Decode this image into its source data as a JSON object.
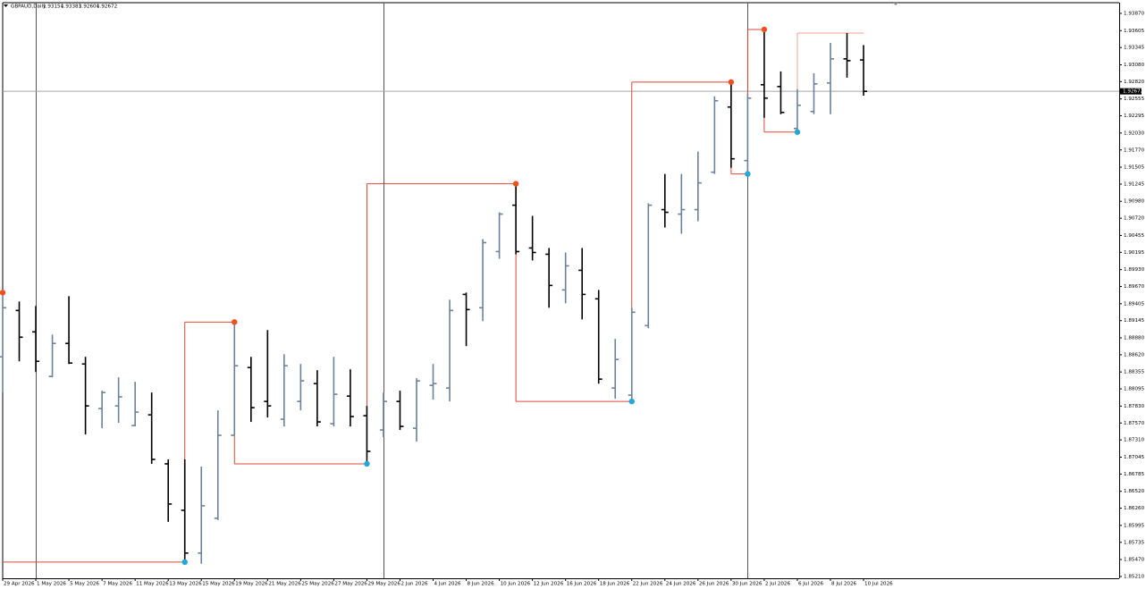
{
  "chart_data": {
    "type": "ohlc",
    "symbol": "GBPAUD,Daily",
    "categories": [
      "29 Apr 2026",
      null,
      "1 May 2026",
      null,
      "5 May 2026",
      null,
      "7 May 2026",
      null,
      "11 May 2026",
      null,
      "13 May 2026",
      null,
      "15 May 2026",
      null,
      "19 May 2026",
      null,
      "21 May 2026",
      null,
      "25 May 2026",
      null,
      "27 May 2026",
      null,
      "29 May 2026",
      null,
      "2 Jun 2026",
      null,
      "4 Jun 2026",
      null,
      "8 Jun 2026",
      null,
      "10 Jun 2026",
      null,
      "12 Jun 2026",
      null,
      "16 Jun 2026",
      null,
      "18 Jun 2026",
      null,
      "22 Jun 2026",
      null,
      "24 Jun 2026",
      null,
      "26 Jun 2026",
      null,
      "30 Jun 2026",
      null,
      "2 Jul 2026",
      null,
      "6 Jul 2026",
      null,
      "8 Jul 2026",
      null,
      "10 Jul 2026"
    ],
    "open": [
      1.88588,
      1.89301,
      1.88972,
      1.88286,
      1.88794,
      1.88478,
      1.87792,
      1.87833,
      1.87532,
      1.87696,
      1.86942,
      1.86228,
      1.8557,
      1.86105,
      1.87381,
      1.88423,
      1.87902,
      1.87628,
      1.87902,
      1.88176,
      1.87559,
      1.87984,
      1.87682,
      1.87463,
      1.87902,
      1.8749,
      1.88149,
      1.88108,
      1.89548,
      1.89343,
      1.90207,
      1.9092,
      1.90262,
      1.90166,
      1.89617,
      1.89919,
      1.8948,
      1.88108,
      1.87998,
      1.89068,
      1.90852,
      1.90783,
      1.90852,
      1.91428,
      1.9243,
      1.91606,
      1.92773,
      1.92745,
      1.921,
      1.92361,
      1.928,
      1.93171,
      1.93154
    ],
    "high": [
      1.89576,
      1.89439,
      1.8937,
      1.88931,
      1.89521,
      1.88588,
      1.88067,
      1.88272,
      1.88204,
      1.88039,
      1.8701,
      1.8701,
      1.869,
      1.87765,
      1.89123,
      1.88588,
      1.89,
      1.88629,
      1.88478,
      1.88382,
      1.88588,
      1.88396,
      1.87833,
      1.88039,
      1.88067,
      1.88259,
      1.88478,
      1.89466,
      1.89576,
      1.90399,
      1.90811,
      1.9125,
      1.90756,
      1.90262,
      1.90193,
      1.90262,
      1.89617,
      1.88862,
      1.89343,
      1.90948,
      1.91401,
      1.91401,
      1.91744,
      1.92594,
      1.92814,
      1.92635,
      1.93623,
      1.92978,
      1.92704,
      1.92951,
      1.93417,
      1.93568,
      1.93383
    ],
    "low": [
      1.88039,
      1.88519,
      1.88355,
      1.88272,
      1.88478,
      1.87394,
      1.8749,
      1.87573,
      1.87518,
      1.86942,
      1.8605,
      1.85432,
      1.85405,
      1.86077,
      1.87381,
      1.87587,
      1.87655,
      1.87518,
      1.87765,
      1.87518,
      1.87518,
      1.87518,
      1.86942,
      1.87353,
      1.87463,
      1.87285,
      1.87929,
      1.87902,
      1.88753,
      1.89137,
      1.90097,
      1.90166,
      1.9007,
      1.89343,
      1.89411,
      1.89164,
      1.88176,
      1.87943,
      1.87902,
      1.89027,
      1.90577,
      1.90481,
      1.90673,
      1.91401,
      1.91497,
      1.91401,
      1.92265,
      1.9232,
      1.92045,
      1.9232,
      1.9232,
      1.92882,
      1.92604
    ],
    "close": [
      1.89343,
      1.8889,
      1.88519,
      1.88794,
      1.88492,
      1.87833,
      1.88039,
      1.87971,
      1.87737,
      1.8701,
      1.86324,
      1.8557,
      1.86297,
      1.87381,
      1.88451,
      1.87806,
      1.87833,
      1.88451,
      1.88218,
      1.87587,
      1.88012,
      1.87669,
      1.87134,
      1.87902,
      1.87518,
      1.88218,
      1.88176,
      1.89301,
      1.89315,
      1.90344,
      1.90783,
      1.90207,
      1.90193,
      1.89686,
      1.89987,
      1.89548,
      1.88245,
      1.88547,
      1.89274,
      1.9092,
      1.90811,
      1.90852,
      1.91263,
      1.92526,
      1.91634,
      1.92567,
      1.92567,
      1.92347,
      1.92457,
      1.92786,
      1.93171,
      1.93143,
      1.92672
    ],
    "up_color": "#6b829a",
    "down_color": "#000000",
    "pivots": {
      "index": [
        0,
        11,
        14,
        22,
        31,
        38,
        44,
        45,
        46,
        48
      ],
      "values": [
        1.89576,
        1.85432,
        1.89123,
        1.86942,
        1.9125,
        1.87902,
        1.92814,
        1.91401,
        1.93623,
        1.92045
      ],
      "line_color": "#d9493a",
      "high_color": "#f0501e",
      "low_color": "#20a8d8"
    },
    "open_level": 1.93568,
    "open_level_color": "#f2a08e",
    "price_line_color": "#a8a8a8",
    "ylim": [
      1.85182,
      1.94035
    ],
    "yticks": [
      {
        "value": 1.9387,
        "label": "1.93870"
      },
      1.93605,
      1.93345,
      {
        "value": 1.9308,
        "label": "1.93080"
      },
      {
        "value": 1.9282,
        "label": "1.92820"
      },
      1.92555,
      1.92295,
      {
        "value": 1.9203,
        "label": "1.92030"
      },
      {
        "value": 1.9177,
        "label": "1.91770"
      },
      1.91505,
      1.91245,
      {
        "value": 1.9098,
        "label": "1.90980"
      },
      {
        "value": 1.9072,
        "label": "1.90720"
      },
      1.90455,
      1.90195,
      {
        "value": 1.8993,
        "label": "1.89930"
      },
      {
        "value": 1.8967,
        "label": "1.89670"
      },
      1.89405,
      1.89145,
      {
        "value": 1.8888,
        "label": "1.88880"
      },
      {
        "value": 1.8862,
        "label": "1.88620"
      },
      1.88355,
      1.88095,
      {
        "value": 1.8783,
        "label": "1.87830"
      },
      {
        "value": 1.8757,
        "label": "1.87570"
      },
      {
        "value": 1.8731,
        "label": "1.87310"
      },
      1.87045,
      1.86785,
      {
        "value": 1.8652,
        "label": "1.86520"
      },
      {
        "value": 1.8626,
        "label": "1.86260"
      },
      1.85995,
      1.85735,
      {
        "value": 1.8547,
        "label": "1.85470"
      },
      {
        "value": 1.8521,
        "label": "1.85210"
      }
    ],
    "grid": false
  }
}
